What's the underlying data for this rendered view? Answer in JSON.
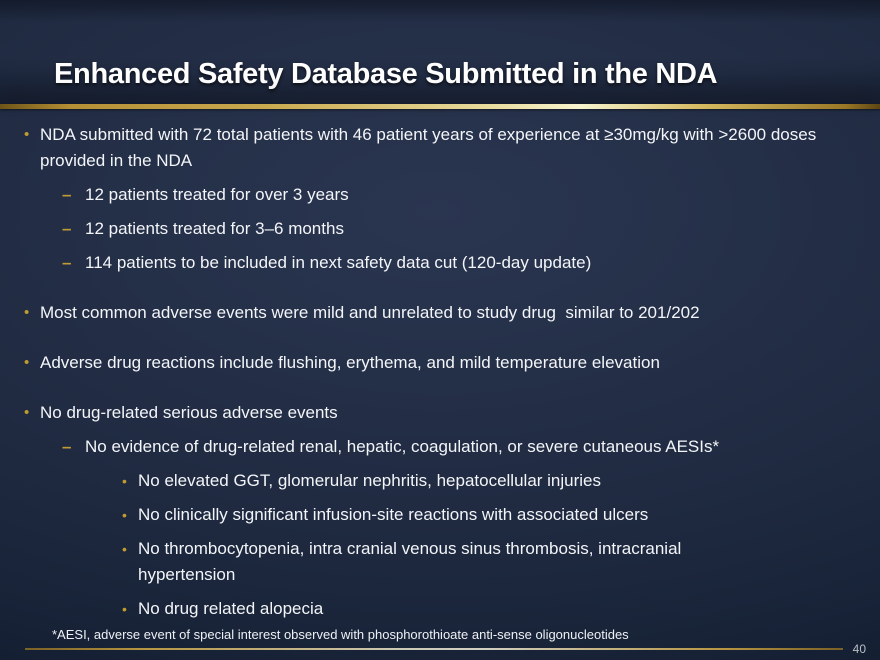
{
  "slide": {
    "title": "Enhanced Safety Database Submitted in the NDA",
    "bullets": [
      {
        "level": 1,
        "marker": "dot",
        "text": "NDA submitted with 72 total patients with 46 patient years of experience at ≥30mg/kg with >2600 doses provided in the NDA"
      },
      {
        "level": 2,
        "marker": "dash",
        "text": "12 patients treated for over 3 years"
      },
      {
        "level": 2,
        "marker": "dash",
        "text": "12 patients treated for 3–6 months"
      },
      {
        "level": 2,
        "marker": "dash",
        "text": "114 patients to be included in next safety data cut (120-day update)"
      },
      {
        "level": 1,
        "marker": "dot",
        "text": "Most common adverse events were mild and unrelated to study drug  similar to 201/202"
      },
      {
        "level": 1,
        "marker": "dot",
        "text": "Adverse drug reactions include flushing, erythema, and mild temperature elevation"
      },
      {
        "level": 1,
        "marker": "dot",
        "text": "No drug-related serious adverse events"
      },
      {
        "level": 2,
        "marker": "dash",
        "text": "No evidence of drug-related renal, hepatic, coagulation, or severe cutaneous AESIs*"
      },
      {
        "level": 3,
        "marker": "dot",
        "text": "No elevated GGT, glomerular nephritis, hepatocellular injuries"
      },
      {
        "level": 3,
        "marker": "dot",
        "text": "No clinically significant infusion-site reactions with associated ulcers"
      },
      {
        "level": 3,
        "marker": "dot",
        "text": "No thrombocytopenia, intra cranial venous sinus thrombosis, intracranial hypertension"
      },
      {
        "level": 3,
        "marker": "dot",
        "text": "No drug related alopecia"
      }
    ],
    "footnote": "*AESI, adverse event of special interest observed with phosphorothioate anti-sense oligonucleotides",
    "page_number": "40",
    "colors": {
      "background_center": "#2a3550",
      "background_edge": "#0b1322",
      "accent_gold": "#bf9b30",
      "divider_bright": "#f7f3cd",
      "text": "#f3f5f8",
      "page_number": "#b9bfc9"
    }
  }
}
